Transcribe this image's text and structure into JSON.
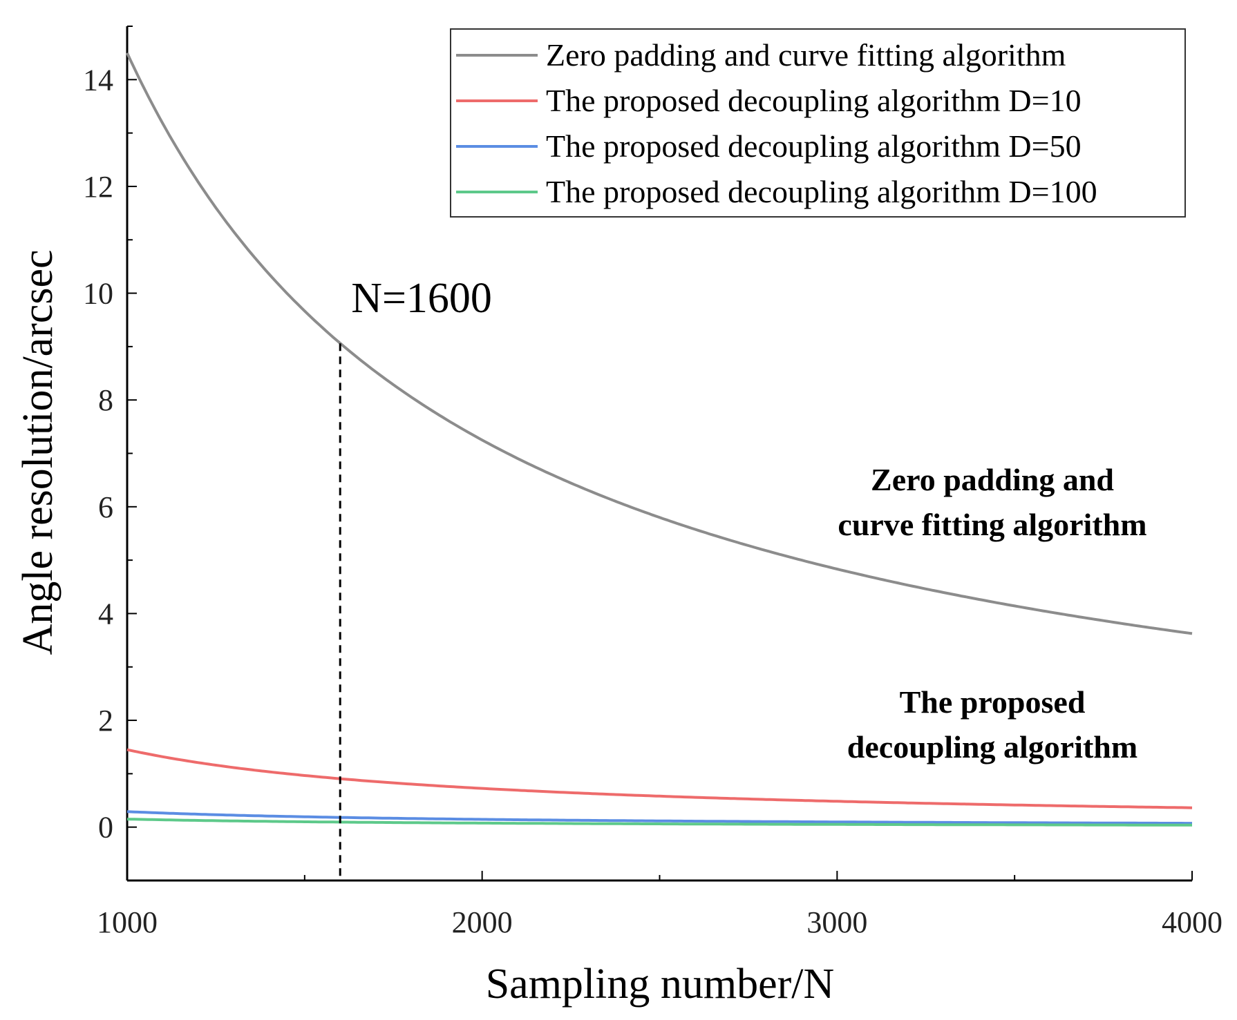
{
  "chart_data": {
    "type": "line",
    "title": "",
    "xlabel": "Sampling number/N",
    "ylabel": "Angle resolution/arcsec",
    "xlim": [
      1000,
      4000
    ],
    "ylim": [
      -1,
      15
    ],
    "xticks": [
      1000,
      2000,
      3000,
      4000
    ],
    "yticks": [
      0,
      2,
      4,
      6,
      8,
      10,
      12,
      14
    ],
    "x": [
      1000,
      1250,
      1500,
      1600,
      1750,
      2000,
      2250,
      2500,
      2750,
      3000,
      3250,
      3500,
      3750,
      4000
    ],
    "series": [
      {
        "name": "Zero padding and curve fitting algorithm",
        "color": "#8c8c8c",
        "values": [
          14.5,
          11.6,
          9.67,
          9.06,
          8.29,
          7.25,
          6.44,
          5.8,
          5.27,
          4.83,
          4.46,
          4.14,
          3.87,
          3.62
        ]
      },
      {
        "name": "The proposed decoupling algorithm D=10",
        "color": "#ee6b6b",
        "values": [
          1.45,
          1.16,
          0.97,
          0.91,
          0.83,
          0.73,
          0.64,
          0.58,
          0.53,
          0.48,
          0.45,
          0.41,
          0.39,
          0.36
        ]
      },
      {
        "name": "The proposed decoupling algorithm D=50",
        "color": "#5b8de3",
        "values": [
          0.29,
          0.23,
          0.19,
          0.18,
          0.17,
          0.15,
          0.13,
          0.12,
          0.11,
          0.1,
          0.09,
          0.08,
          0.08,
          0.07
        ]
      },
      {
        "name": "The proposed decoupling algorithm D=100",
        "color": "#5dc98a",
        "values": [
          0.15,
          0.12,
          0.1,
          0.09,
          0.08,
          0.07,
          0.06,
          0.06,
          0.05,
          0.05,
          0.04,
          0.04,
          0.04,
          0.04
        ]
      }
    ],
    "legend_position": "top-right",
    "annotations": [
      {
        "label": "N=1600",
        "x": 1600,
        "y": 9.06
      }
    ],
    "curve_labels": [
      {
        "lines": [
          "Zero padding and",
          "curve fitting algorithm"
        ]
      },
      {
        "lines": [
          "The proposed",
          "decoupling algorithm"
        ]
      }
    ],
    "grid": false
  }
}
